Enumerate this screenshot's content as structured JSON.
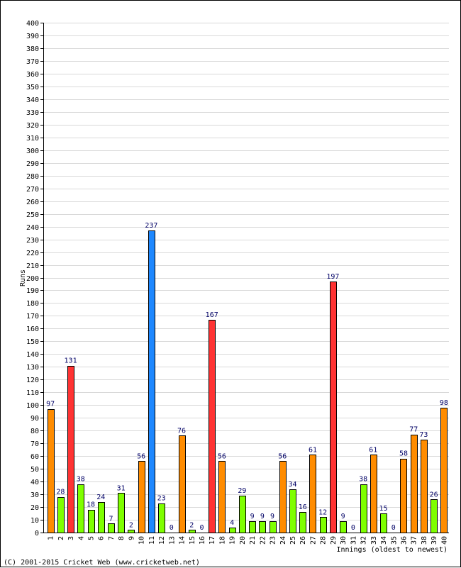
{
  "chart_data": {
    "type": "bar",
    "ylabel": "Runs",
    "xlabel": "Innings (oldest to newest)",
    "ylim": [
      0,
      400
    ],
    "ytick_step": 10,
    "grid": true,
    "categories": [
      "1",
      "2",
      "3",
      "4",
      "5",
      "6",
      "7",
      "8",
      "9",
      "10",
      "11",
      "12",
      "13",
      "14",
      "15",
      "16",
      "17",
      "18",
      "19",
      "20",
      "21",
      "22",
      "23",
      "24",
      "25",
      "26",
      "27",
      "28",
      "29",
      "30",
      "31",
      "32",
      "33",
      "34",
      "35",
      "36",
      "37",
      "38",
      "39",
      "40"
    ],
    "values": [
      97,
      28,
      131,
      38,
      18,
      24,
      7,
      31,
      2,
      56,
      237,
      23,
      0,
      76,
      2,
      0,
      167,
      56,
      4,
      29,
      9,
      9,
      9,
      56,
      34,
      16,
      61,
      12,
      197,
      9,
      0,
      38,
      61,
      15,
      0,
      58,
      77,
      73,
      26,
      98
    ],
    "colors": {
      "under_50": "#7fff00",
      "fifty": "#ff8c00",
      "hundred": "#ff3333",
      "double_hundred": "#1e88ff",
      "value_label": "#000066",
      "grid": "#d9d9d9"
    }
  },
  "footer": {
    "copyright": "(C) 2001-2015 Cricket Web (www.cricketweb.net)"
  }
}
